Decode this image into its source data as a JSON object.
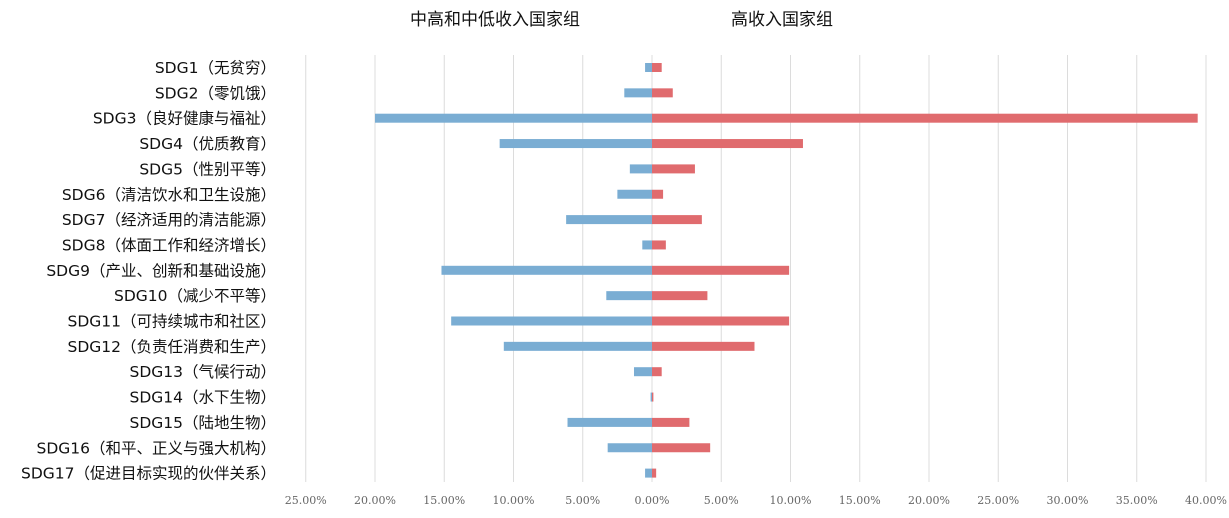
{
  "chart_data": {
    "type": "bar",
    "orientation": "horizontal-diverging",
    "series": [
      {
        "name": "中高和中低收入国家组",
        "color": "#7aadd3",
        "values": [
          0.5,
          2.0,
          20.0,
          11.0,
          1.6,
          2.5,
          6.2,
          0.7,
          15.2,
          3.3,
          14.5,
          10.7,
          1.3,
          0.1,
          6.1,
          3.2,
          0.5
        ]
      },
      {
        "name": "高收入国家组",
        "color": "#e06b6e",
        "values": [
          0.7,
          1.5,
          39.4,
          10.9,
          3.1,
          0.8,
          3.6,
          1.0,
          9.9,
          4.0,
          9.9,
          7.4,
          0.7,
          0.1,
          2.7,
          4.2,
          0.3
        ]
      }
    ],
    "categories": [
      "SDG1（无贫穷）",
      "SDG2（零饥饿）",
      "SDG3（良好健康与福祉）",
      "SDG4（优质教育）",
      "SDG5（性别平等）",
      "SDG6（清洁饮水和卫生设施）",
      "SDG7（经济适用的清洁能源）",
      "SDG8（体面工作和经济增长）",
      "SDG9（产业、创新和基础设施）",
      "SDG10（减少不平等）",
      "SDG11（可持续城市和社区）",
      "SDG12（负责任消费和生产）",
      "SDG13（气候行动）",
      "SDG14（水下生物）",
      "SDG15（陆地生物）",
      "SDG16（和平、正义与强大机构）",
      "SDG17（促进目标实现的伙伴关系）"
    ],
    "xlim": [
      -25,
      40
    ],
    "xticks": [
      -25,
      -20,
      -15,
      -10,
      -5,
      0,
      5,
      10,
      15,
      20,
      25,
      30,
      35,
      40
    ],
    "xtick_labels": [
      "25.00%",
      "20.00%",
      "15.00%",
      "10.00%",
      "5.00%",
      "0.00%",
      "5.00%",
      "10.00%",
      "15.00%",
      "20.00%",
      "25.00%",
      "30.00%",
      "35.00%",
      "40.00%"
    ],
    "grid": "vertical",
    "legend": "top"
  }
}
